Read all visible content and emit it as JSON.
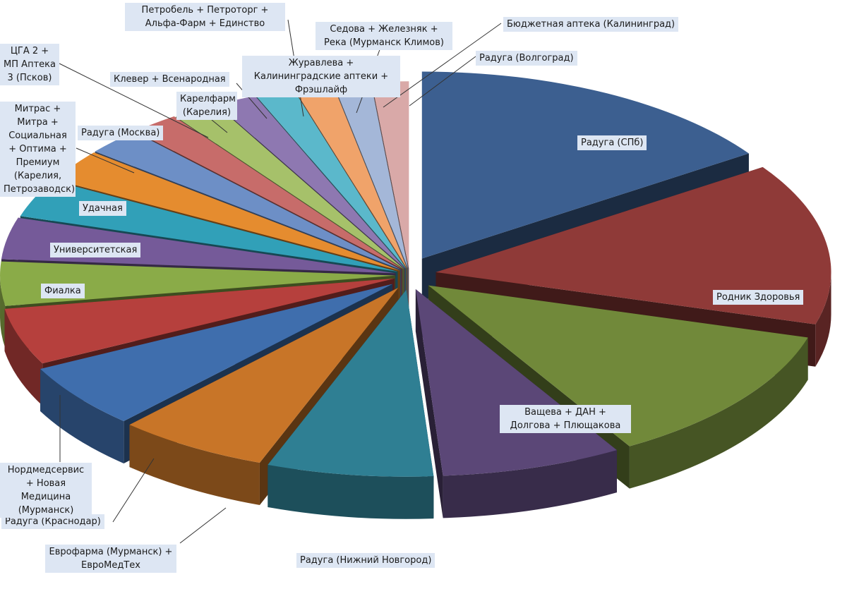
{
  "chart_data": {
    "type": "pie",
    "subtype": "3d-exploded",
    "title": "",
    "legend": "none",
    "slices": [
      {
        "label": "Радуга (СПб)",
        "value": 15.5,
        "color": "#3c5f90"
      },
      {
        "label": "Родник Здоровья",
        "value": 14.0,
        "color": "#8f3a38"
      },
      {
        "label": "Ващева + ДАН + Долгова + Плющакова",
        "value": 12.0,
        "color": "#71893a"
      },
      {
        "label": "Радуга (Нижний Новгород)",
        "value": 7.4,
        "color": "#5b4777"
      },
      {
        "label": "Еврофарма (Мурманск) + ЕвроМедТех",
        "value": 6.8,
        "color": "#2f7f93"
      },
      {
        "label": "Радуга (Краснодар)",
        "value": 6.2,
        "color": "#c87528"
      },
      {
        "label": "Нордмедсервис + Новая Медицина (Мурманск)",
        "value": 5.6,
        "color": "#3f6ead"
      },
      {
        "label": "Фиалка",
        "value": 4.9,
        "color": "#b6403d"
      },
      {
        "label": "Университетская",
        "value": 3.8,
        "color": "#8aab48"
      },
      {
        "label": "Удачная",
        "value": 3.6,
        "color": "#755a99"
      },
      {
        "label": "Митрас + Митра + Социальная + Оптима + Премиум (Карелия, Петрозаводск)",
        "value": 3.3,
        "color": "#31a0b8"
      },
      {
        "label": "Радуга (Москва)",
        "value": 2.8,
        "color": "#e58c2f"
      },
      {
        "label": "ЦГА 2 + МП Аптека 3 (Псков)",
        "value": 2.3,
        "color": "#6d8fc6"
      },
      {
        "label": "Карелфарм (Карелия)",
        "value": 2.0,
        "color": "#c76c6a"
      },
      {
        "label": "Клевер + Всенародная",
        "value": 1.9,
        "color": "#a6c16a"
      },
      {
        "label": "Журавлева + Калининградские аптеки + Фрэшлайф",
        "value": 1.7,
        "color": "#8e78b1"
      },
      {
        "label": "Петробель + Петроторг + Альфа-Фарм + Единство",
        "value": 1.6,
        "color": "#5bb8cb"
      },
      {
        "label": "Седова + Железняк + Река (Мурманск Климов)",
        "value": 1.6,
        "color": "#f0a36a"
      },
      {
        "label": "Бюджетная аптека (Калининград)",
        "value": 1.5,
        "color": "#a4b7d8"
      },
      {
        "label": "Радуга (Волгоград)",
        "value": 1.5,
        "color": "#d9a9a8"
      }
    ]
  }
}
